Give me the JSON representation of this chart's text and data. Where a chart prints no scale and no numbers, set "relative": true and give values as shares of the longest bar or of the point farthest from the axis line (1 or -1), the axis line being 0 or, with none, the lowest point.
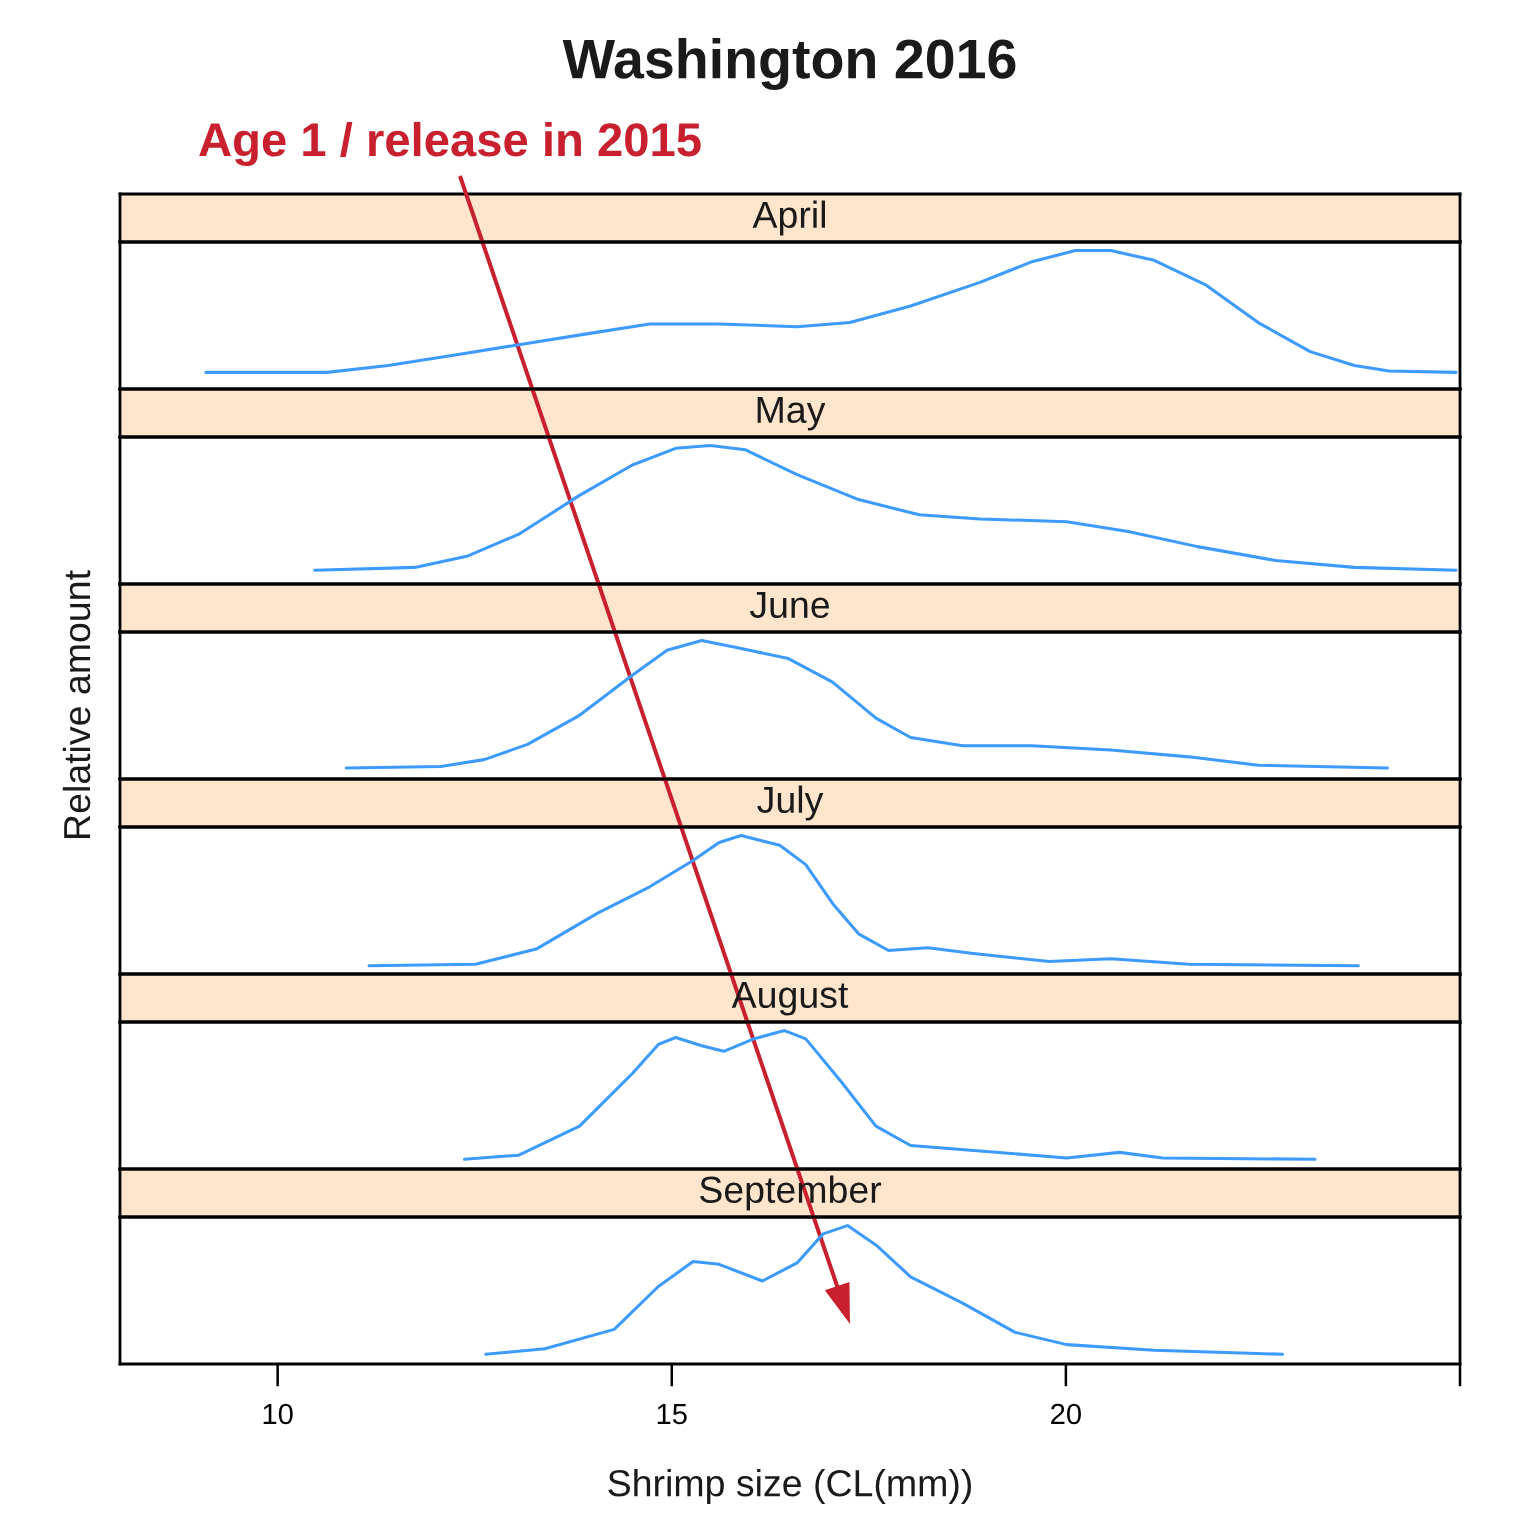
{
  "chart_data": [
    {
      "type": "line",
      "title": "Washington 2016",
      "annotations": [
        "Age 1 / release in 2015"
      ],
      "relative": true,
      "xlim": [
        8,
        25
      ],
      "tick_labels": false,
      "series": [
        {
          "name": "April",
          "color": "#3d9bff",
          "x": [
            9.09,
            10.63,
            11.4,
            12.29,
            13.06,
            13.94,
            14.72,
            15.6,
            16.59,
            17.26,
            18.03,
            18.91,
            19.57,
            20.12,
            20.57,
            21.12,
            21.78,
            22.44,
            23.1,
            23.66,
            24.1,
            24.95
          ],
          "values": [
            0.12,
            0.12,
            0.17,
            0.25,
            0.32,
            0.4,
            0.47,
            0.47,
            0.45,
            0.48,
            0.6,
            0.77,
            0.92,
            1,
            1,
            0.93,
            0.75,
            0.48,
            0.27,
            0.17,
            0.13,
            0.12
          ]
        }
      ]
    },
    {
      "type": "line",
      "relative": true,
      "xlim": [
        8,
        25
      ],
      "tick_labels": false,
      "series": [
        {
          "name": "May",
          "color": "#3d9bff",
          "x": [
            10.47,
            11.74,
            12.4,
            13.06,
            13.83,
            14.5,
            15.05,
            15.49,
            15.93,
            16.59,
            17.37,
            18.14,
            18.91,
            20.01,
            20.79,
            21.67,
            22.66,
            23.66,
            24.95
          ],
          "values": [
            0.1,
            0.12,
            0.2,
            0.36,
            0.64,
            0.86,
            0.98,
            1,
            0.97,
            0.79,
            0.61,
            0.5,
            0.47,
            0.45,
            0.38,
            0.27,
            0.17,
            0.12,
            0.1
          ]
        }
      ]
    },
    {
      "type": "line",
      "ylabel": "Relative amount",
      "relative": true,
      "xlim": [
        8,
        25
      ],
      "tick_labels": false,
      "series": [
        {
          "name": "June",
          "color": "#3d9bff",
          "x": [
            10.87,
            12.07,
            12.62,
            13.17,
            13.83,
            14.5,
            14.94,
            15.38,
            15.82,
            16.48,
            17.04,
            17.59,
            18.03,
            18.69,
            19.57,
            20.57,
            21.56,
            22.44,
            24.08
          ],
          "values": [
            0.08,
            0.09,
            0.14,
            0.25,
            0.46,
            0.75,
            0.93,
            1,
            0.95,
            0.87,
            0.7,
            0.44,
            0.3,
            0.24,
            0.24,
            0.21,
            0.16,
            0.1,
            0.08
          ]
        }
      ]
    },
    {
      "type": "line",
      "relative": true,
      "xlim": [
        8,
        25
      ],
      "tick_labels": false,
      "series": [
        {
          "name": "July",
          "color": "#3d9bff",
          "x": [
            11.16,
            12.51,
            13.28,
            14.06,
            14.72,
            15.27,
            15.6,
            15.88,
            16.37,
            16.7,
            17.04,
            17.37,
            17.75,
            18.25,
            18.8,
            19.79,
            20.57,
            21.56,
            23.71
          ],
          "values": [
            0.06,
            0.07,
            0.18,
            0.44,
            0.63,
            0.82,
            0.95,
            1,
            0.93,
            0.79,
            0.51,
            0.29,
            0.17,
            0.19,
            0.15,
            0.09,
            0.11,
            0.07,
            0.06
          ]
        }
      ]
    },
    {
      "type": "line",
      "relative": true,
      "xlim": [
        8,
        25
      ],
      "tick_labels": false,
      "series": [
        {
          "name": "August",
          "color": "#3d9bff",
          "x": [
            12.37,
            13.06,
            13.83,
            14.5,
            14.83,
            15.05,
            15.38,
            15.66,
            16.04,
            16.43,
            16.7,
            17.15,
            17.59,
            18.03,
            18.91,
            20.01,
            20.68,
            21.23,
            23.16
          ],
          "values": [
            0.07,
            0.1,
            0.31,
            0.69,
            0.9,
            0.95,
            0.89,
            0.85,
            0.94,
            1,
            0.94,
            0.63,
            0.31,
            0.17,
            0.13,
            0.08,
            0.12,
            0.08,
            0.07
          ]
        }
      ]
    },
    {
      "type": "line",
      "xlabel": "Shrimp size (CL(mm))",
      "relative": true,
      "xlim": [
        8,
        25
      ],
      "xticks": [
        10,
        15,
        20,
        {
          "value": 25,
          "label": null
        }
      ],
      "tick_labels": "x",
      "series": [
        {
          "name": "September",
          "color": "#3d9bff",
          "x": [
            12.64,
            13.39,
            14.27,
            14.83,
            15.27,
            15.6,
            16.15,
            16.59,
            16.92,
            17.23,
            17.59,
            18.03,
            18.69,
            19.35,
            20.01,
            21.12,
            22.75
          ],
          "values": [
            0.07,
            0.11,
            0.25,
            0.56,
            0.74,
            0.72,
            0.6,
            0.73,
            0.94,
            1,
            0.86,
            0.63,
            0.44,
            0.23,
            0.14,
            0.1,
            0.07
          ]
        }
      ]
    }
  ]
}
